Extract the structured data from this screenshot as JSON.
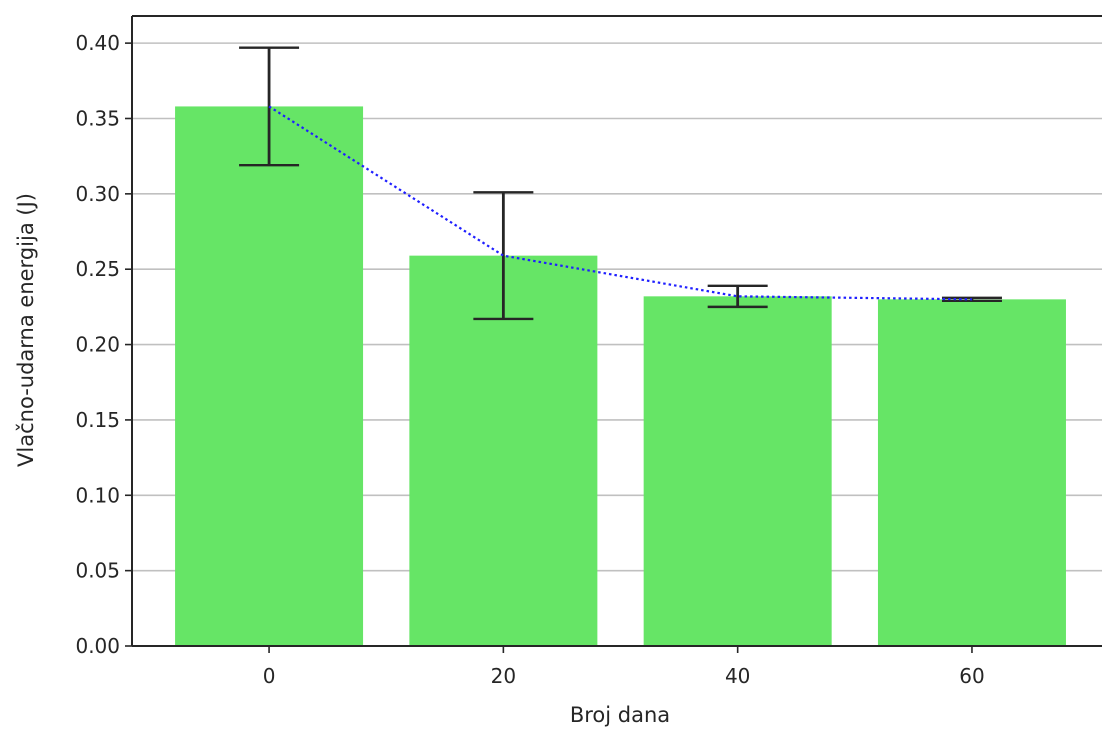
{
  "chart_data": {
    "type": "bar",
    "title": "",
    "xlabel": "Broj dana",
    "ylabel": "Vlačno-udarna energija (J)",
    "categories": [
      "0",
      "20",
      "40",
      "60"
    ],
    "x": [
      0,
      20,
      40,
      60
    ],
    "values": [
      0.358,
      0.259,
      0.232,
      0.23
    ],
    "error": [
      0.039,
      0.042,
      0.007,
      0.001
    ],
    "trend_line": {
      "style": "dotted",
      "color": "#1f1fff",
      "values": [
        0.358,
        0.259,
        0.232,
        0.23
      ]
    },
    "ylim": [
      0.0,
      0.418
    ],
    "xlim": [
      -11.7,
      71.1
    ],
    "y_ticks": [
      0.0,
      0.05,
      0.1,
      0.15,
      0.2,
      0.25,
      0.3,
      0.35,
      0.4
    ],
    "y_tick_labels": [
      "0.00",
      "0.05",
      "0.10",
      "0.15",
      "0.20",
      "0.25",
      "0.30",
      "0.35",
      "0.40"
    ],
    "x_ticks": [
      0,
      20,
      40,
      60
    ],
    "x_tick_labels": [
      "0",
      "20",
      "40",
      "60"
    ],
    "grid": "y-major",
    "colors": {
      "bar": "#66e566",
      "errorbar": "#262626",
      "grid": "#c0c0c0",
      "axis": "#262626"
    }
  }
}
